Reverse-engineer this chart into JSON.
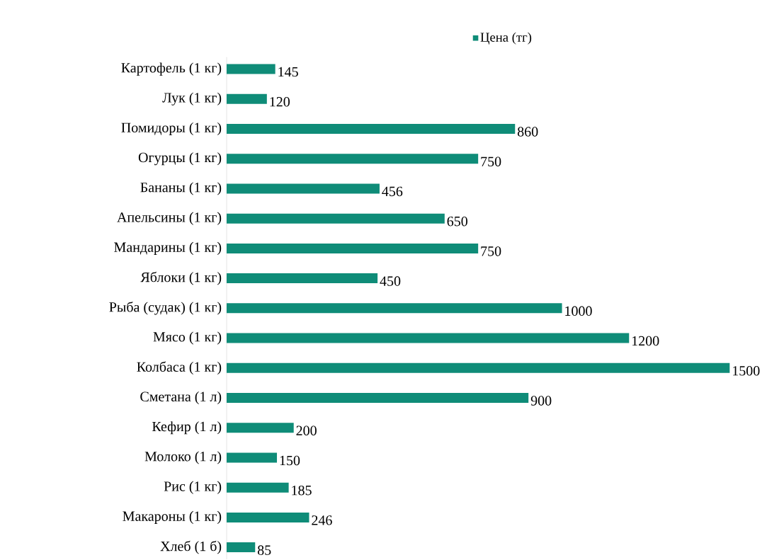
{
  "chart_data": {
    "type": "bar",
    "orientation": "horizontal",
    "data_labels": true,
    "legend": "top",
    "categories": [
      "Картофель (1 кг)",
      "Лук (1 кг)",
      "Помидоры (1 кг)",
      "Огурцы (1 кг)",
      "Бананы (1 кг)",
      "Апельсины (1 кг)",
      "Мандарины (1 кг)",
      "Яблоки (1 кг)",
      "Рыба (судак) (1 кг)",
      "Мясо (1 кг)",
      "Колбаса (1 кг)",
      "Сметана (1 л)",
      "Кефир (1 л)",
      "Молоко (1 л)",
      "Рис (1 кг)",
      "Макароны (1 кг)",
      "Хлеб (1 б)"
    ],
    "series": [
      {
        "name": "Цена (тг)",
        "color": "#0f8c78",
        "values": [
          145,
          120,
          860,
          750,
          456,
          650,
          750,
          450,
          1000,
          1200,
          1500,
          900,
          200,
          150,
          185,
          246,
          85
        ]
      }
    ]
  }
}
